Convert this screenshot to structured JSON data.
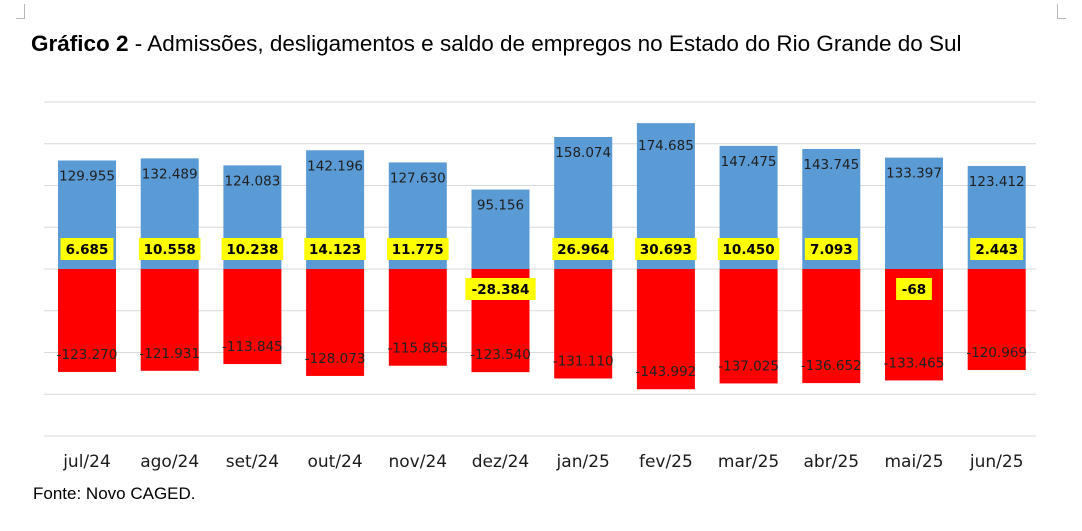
{
  "title_bold": "Gráfico 2",
  "title_rest": " - Admissões, desligamentos e saldo de empregos no Estado do Rio Grande do Sul",
  "source": "Fonte: Novo CAGED.",
  "colors": {
    "admissions": "#5b9bd5",
    "dismissals": "#ff0000",
    "balance_box": "#ffff00",
    "grid": "#d9d9d9"
  },
  "chart_data": {
    "type": "bar",
    "stacked": true,
    "categories": [
      "jul/24",
      "ago/24",
      "set/24",
      "out/24",
      "nov/24",
      "dez/24",
      "jan/25",
      "fev/25",
      "mar/25",
      "abr/25",
      "mai/25",
      "jun/25"
    ],
    "series": [
      {
        "values": [
          129955,
          132489,
          124083,
          142196,
          127630,
          95156,
          158074,
          174685,
          147475,
          143745,
          133397,
          123412
        ],
        "labels": [
          "129.955",
          "132.489",
          "124.083",
          "142.196",
          "127.630",
          "95.156",
          "158.074",
          "174.685",
          "147.475",
          "143.745",
          "133.397",
          "123.412"
        ]
      },
      {
        "values": [
          -123270,
          -121931,
          -113845,
          -128073,
          -115855,
          -123540,
          -131110,
          -143992,
          -137025,
          -136652,
          -133465,
          -120969
        ],
        "labels": [
          "-123.270",
          "-121.931",
          "-113.845",
          "-128.073",
          "-115.855",
          "-123.540",
          "-131.110",
          "-143.992",
          "-137.025",
          "-136.652",
          "-133.465",
          "-120.969"
        ]
      },
      {
        "values": [
          6685,
          10558,
          10238,
          14123,
          11775,
          -28384,
          26964,
          30693,
          10450,
          7093,
          -68,
          2443
        ],
        "labels": [
          "6.685",
          "10.558",
          "10.238",
          "14.123",
          "11.775",
          "-28.384",
          "26.964",
          "30.693",
          "10.450",
          "7.093",
          "-68",
          "2.443"
        ]
      }
    ],
    "ylim": [
      -200000,
      200000
    ],
    "grid": true,
    "legend": "none"
  }
}
